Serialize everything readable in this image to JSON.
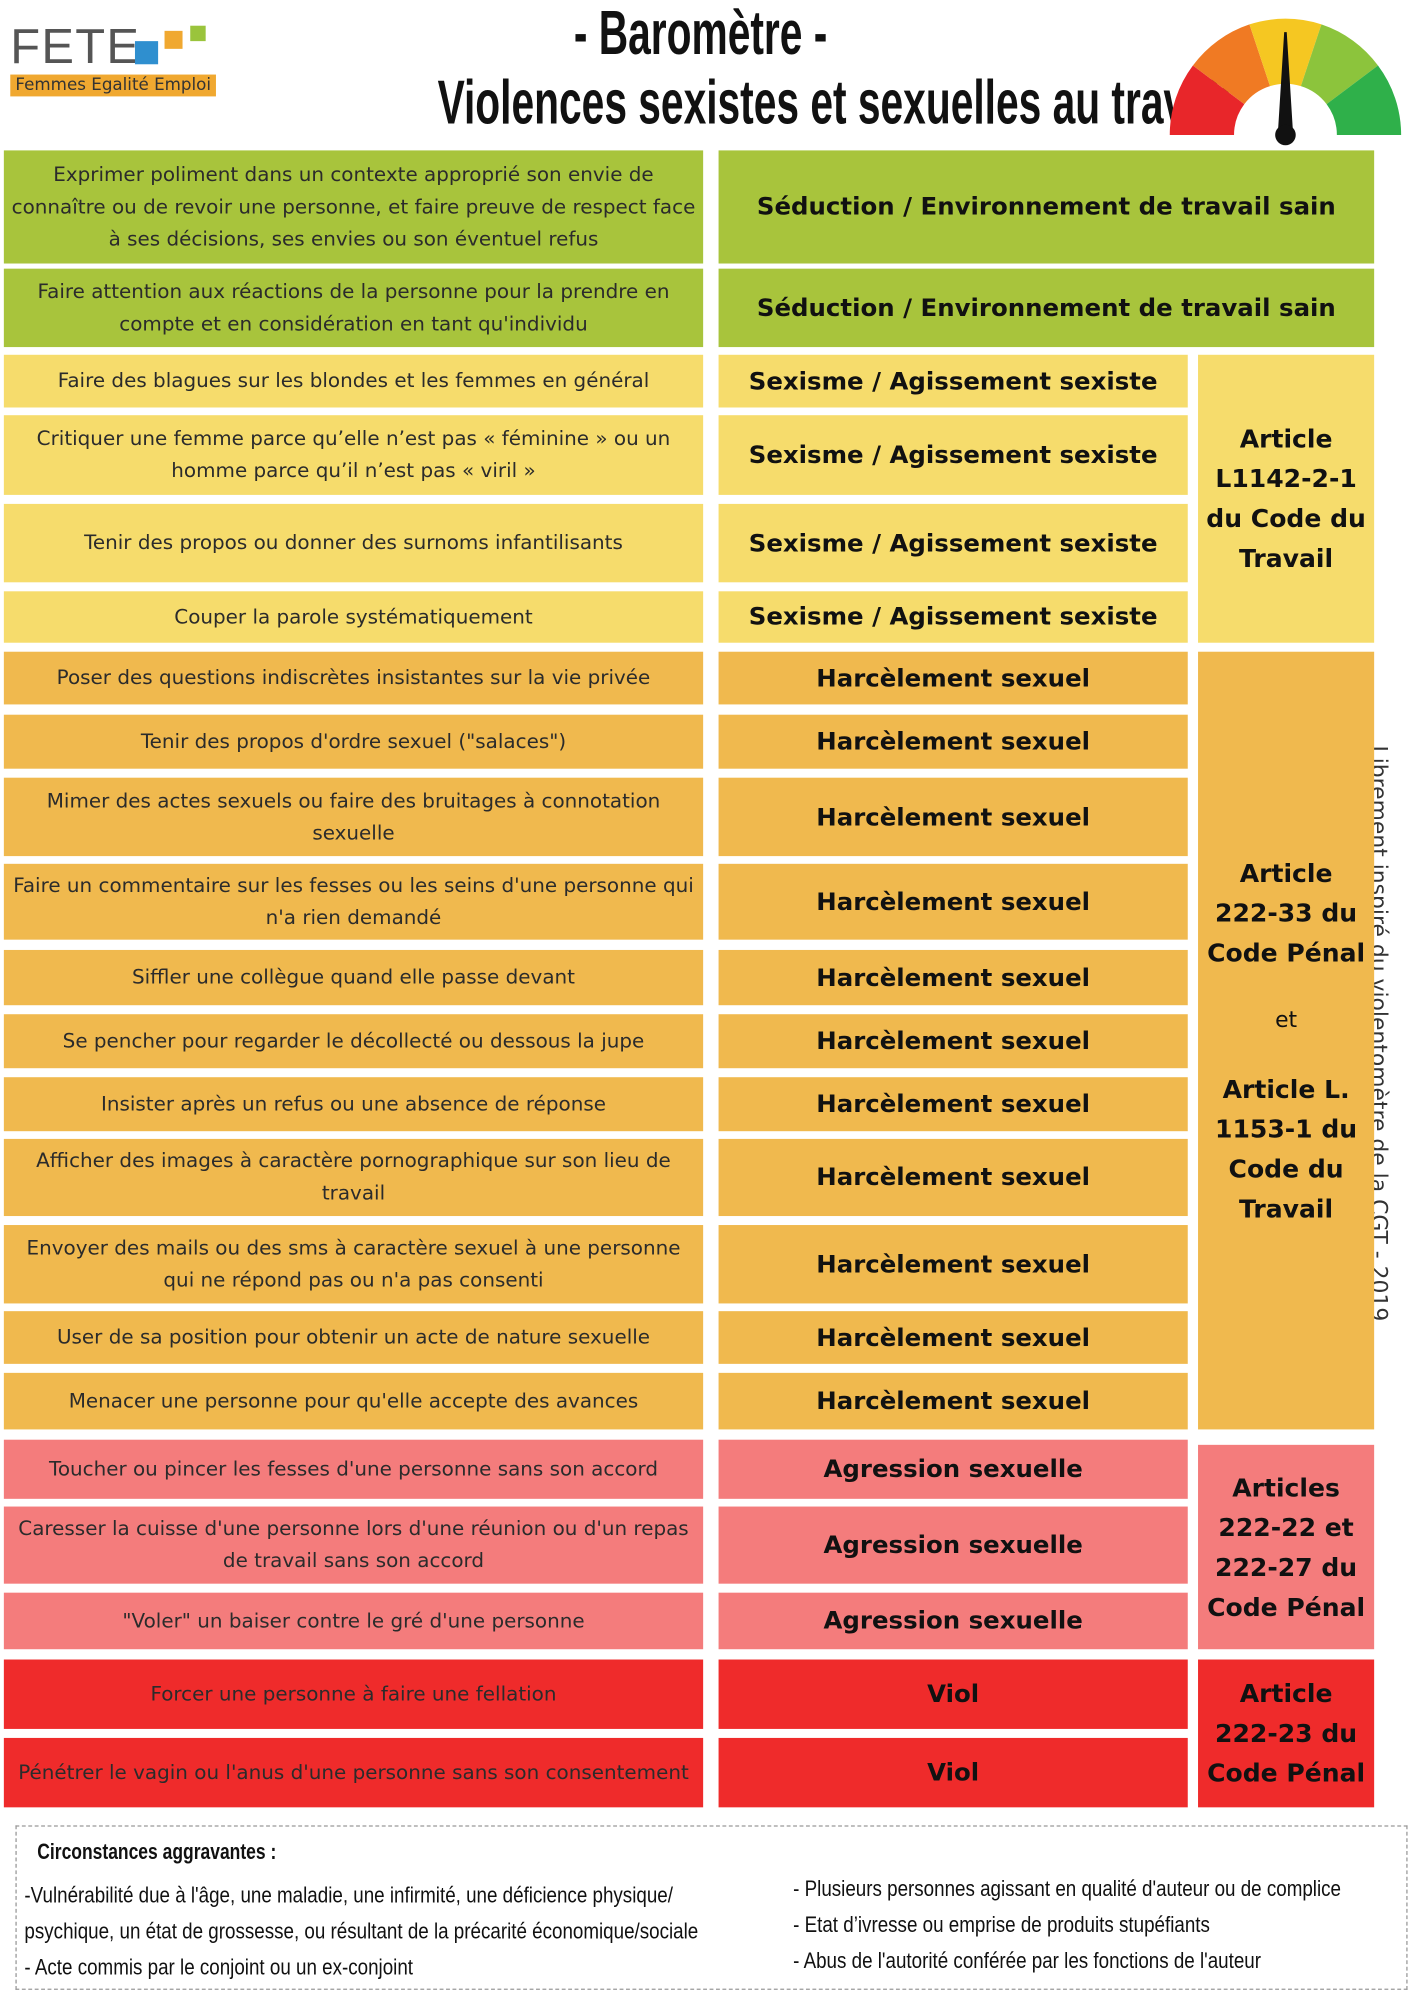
{
  "header": {
    "logo": "FETE",
    "logo_subtitle": "Femmes Egalité Emploi",
    "title": [
      "- Baromètre -",
      "Violences sexistes et sexuelles au travail"
    ]
  },
  "rows": [
    {
      "text": "Exprimer poliment dans un contexte approprié son envie de connaître ou de revoir une personne, et faire preuve de respect face à ses décisions, ses envies ou son éventuel refus",
      "category": "Séduction / Environnement de travail sain"
    },
    {
      "text": "Faire attention aux réactions de la personne pour la prendre en compte et en considération en tant qu'individu",
      "category": "Séduction / Environnement de travail sain"
    },
    {
      "text": "Faire des blagues sur les blondes et les femmes en général",
      "category": "Sexisme / Agissement sexiste"
    },
    {
      "text": "Critiquer une femme parce qu’elle n’est pas « féminine » ou un homme parce qu’il n’est pas « viril »",
      "category": "Sexisme / Agissement sexiste"
    },
    {
      "text": "Tenir des propos ou donner des surnoms infantilisants",
      "category": "Sexisme / Agissement sexiste"
    },
    {
      "text": "Couper la parole systématiquement",
      "category": "Sexisme / Agissement sexiste"
    },
    {
      "text": "Poser des questions indiscrètes insistantes sur la vie privée",
      "category": "Harcèlement sexuel"
    },
    {
      "text": "Tenir des propos d'ordre sexuel (\"salaces\")",
      "category": "Harcèlement sexuel"
    },
    {
      "text": "Mimer des actes sexuels ou faire des bruitages à connotation sexuelle",
      "category": "Harcèlement sexuel"
    },
    {
      "text": "Faire un commentaire sur les fesses ou les seins d'une personne qui n'a rien demandé",
      "category": "Harcèlement sexuel"
    },
    {
      "text": "Siffler une collègue quand elle passe devant",
      "category": "Harcèlement sexuel"
    },
    {
      "text": "Se pencher pour regarder le décollecté ou dessous la jupe",
      "category": "Harcèlement sexuel"
    },
    {
      "text": "Insister après un refus ou une absence de réponse",
      "category": "Harcèlement sexuel"
    },
    {
      "text": "Afficher des images à caractère pornographique sur son lieu de travail",
      "category": "Harcèlement sexuel"
    },
    {
      "text": "Envoyer des mails ou des sms à caractère sexuel à une personne qui ne répond pas ou n'a pas consenti",
      "category": "Harcèlement sexuel"
    },
    {
      "text": "User de sa position pour obtenir un acte de nature sexuelle",
      "category": "Harcèlement sexuel"
    },
    {
      "text": "Menacer une personne pour qu'elle accepte des avances",
      "category": "Harcèlement sexuel"
    },
    {
      "text": "Toucher ou pincer les fesses d'une personne sans son accord",
      "category": "Agression sexuelle"
    },
    {
      "text": "Caresser la cuisse d'une personne lors d'une réunion ou d'un repas de travail sans son accord",
      "category": "Agression sexuelle"
    },
    {
      "text": "\"Voler\" un baiser contre le gré d'une personne",
      "category": "Agression sexuelle"
    },
    {
      "text": "Forcer une personne à faire une fellation",
      "category": "Viol"
    },
    {
      "text": "Pénétrer le vagin ou l'anus d'une personne sans son consentement",
      "category": "Viol"
    }
  ],
  "legal": [
    {
      "parts": [
        "Article L1142-2-1 du Code du Travail"
      ]
    },
    {
      "parts": [
        "Article 222-33 du Code Pénal",
        "et",
        "Article L. 1153-1 du Code du Travail"
      ]
    },
    {
      "parts": [
        "Articles 222-22 et 222-27 du Code Pénal"
      ]
    },
    {
      "parts": [
        "Article 222-23 du Code Pénal"
      ]
    }
  ],
  "side_note": "Librement inspiré du violentomètre de la CGT - 2019",
  "footer": {
    "title": "Circonstances aggravantes :",
    "left": [
      "-Vulnérabilité due à l'âge, une maladie, une infirmité, une déficience physique/",
      "psychique, un état de grossesse, ou résultant de la précarité économique/sociale",
      "- Acte commis par le conjoint ou un ex-conjoint"
    ],
    "right": [
      "- Plusieurs personnes agissant en qualité d'auteur ou de complice",
      "- Etat d’ivresse ou emprise de produits stupéfiants",
      "- Abus de l'autorité conférée par les fonctions de l'auteur"
    ]
  }
}
